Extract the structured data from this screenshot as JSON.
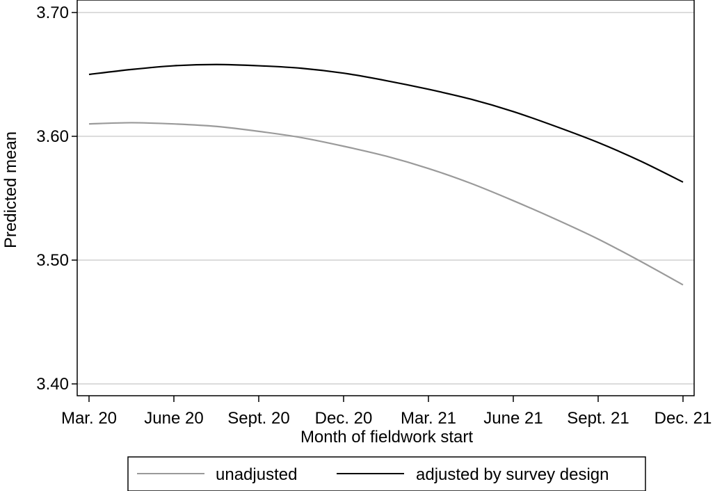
{
  "chart_data": {
    "type": "line",
    "xlabel": "Month of fieldwork start",
    "ylabel": "Predicted mean",
    "ylim": [
      3.4,
      3.7
    ],
    "x_ticks": [
      0,
      3,
      6,
      9,
      12,
      15,
      18,
      21
    ],
    "x_tick_labels": [
      "Mar. 20",
      "June 20",
      "Sept. 20",
      "Dec. 20",
      "Mar. 21",
      "June 21",
      "Sept. 21",
      "Dec. 21"
    ],
    "y_ticks": [
      3.4,
      3.5,
      3.6,
      3.7
    ],
    "y_tick_labels": [
      "3.40",
      "3.50",
      "3.60",
      "3.70"
    ],
    "grid": true,
    "legend_position": "bottom",
    "x": [
      0,
      1.5,
      3,
      4.5,
      6,
      7.5,
      9,
      10.5,
      12,
      13.5,
      15,
      16.5,
      18,
      19.5,
      21
    ],
    "series": [
      {
        "name": "unadjusted",
        "color": "#9a9a9a",
        "values": [
          3.61,
          3.611,
          3.61,
          3.608,
          3.604,
          3.599,
          3.592,
          3.584,
          3.574,
          3.562,
          3.548,
          3.533,
          3.517,
          3.499,
          3.48
        ]
      },
      {
        "name": "adjusted by survey design",
        "color": "#000000",
        "values": [
          3.65,
          3.654,
          3.657,
          3.658,
          3.657,
          3.655,
          3.651,
          3.645,
          3.638,
          3.63,
          3.62,
          3.608,
          3.595,
          3.58,
          3.563
        ]
      }
    ]
  },
  "colors": {
    "background": "#ffffff",
    "gridline": "#dcdcdc",
    "axis": "#000000"
  }
}
